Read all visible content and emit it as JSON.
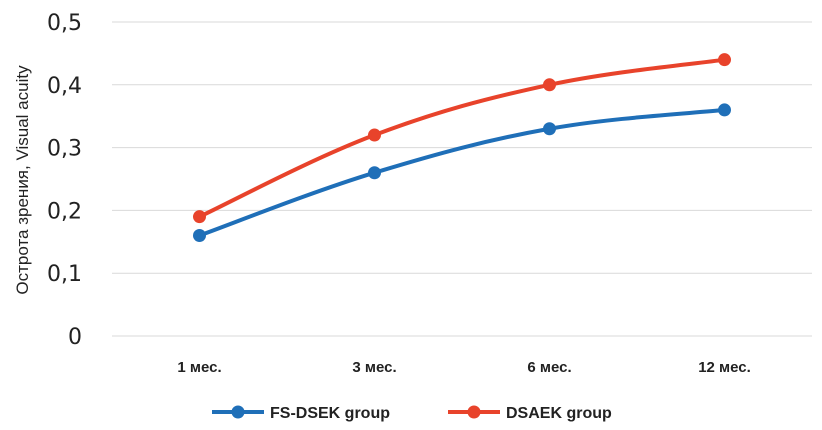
{
  "chart_data": {
    "type": "line",
    "categories": [
      "1 мес.",
      "3 мес.",
      "6 мес.",
      "12 мес."
    ],
    "series": [
      {
        "name": "FS-DSEK group",
        "values": [
          0.16,
          0.26,
          0.33,
          0.36
        ],
        "color": "#1f6fb8"
      },
      {
        "name": "DSAEK group",
        "values": [
          0.19,
          0.32,
          0.4,
          0.44
        ],
        "color": "#e8432b"
      }
    ],
    "ylabel": "Острота зрения, Visual acuity",
    "ylim": [
      0,
      0.5
    ],
    "yticks": [
      "0",
      "0,1",
      "0,2",
      "0,3",
      "0,4",
      "0,5"
    ],
    "grid": true,
    "legend": "bottom",
    "gridColor": "#d9d9d9"
  }
}
